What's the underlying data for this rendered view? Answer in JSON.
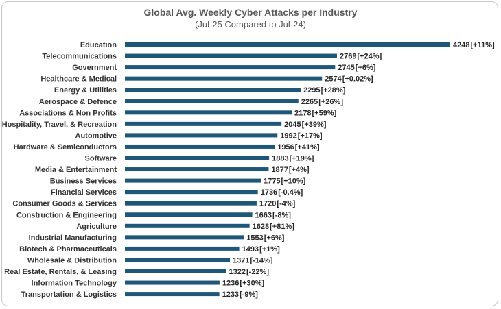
{
  "chart_data": {
    "type": "bar",
    "orientation": "horizontal",
    "title": "Global Avg. Weekly Cyber Attacks per Industry",
    "subtitle": "(Jul-25 Compared to Jul-24)",
    "bar_color": "#1f5779",
    "grid": false,
    "legend": "none",
    "categories": [
      "Education",
      "Telecommunications",
      "Government",
      "Healthcare & Medical",
      "Energy & Utilities",
      "Aerospace & Defence",
      "Associations & Non Profits",
      "Hospitality, Travel, & Recreation",
      "Automotive",
      "Hardware & Semiconductors",
      "Software",
      "Media & Entertainment",
      "Business Services",
      "Financial Services",
      "Consumer Goods & Services",
      "Construction & Engineering",
      "Agriculture",
      "Industrial Manufacturing",
      "Biotech & Pharmaceuticals",
      "Wholesale & Distribution",
      "Real Estate, Rentals, & Leasing",
      "Information Technology",
      "Transportation & Logistics"
    ],
    "values": [
      4248,
      2769,
      2745,
      2574,
      2295,
      2265,
      2178,
      2045,
      1992,
      1956,
      1883,
      1877,
      1775,
      1736,
      1720,
      1663,
      1628,
      1553,
      1493,
      1371,
      1322,
      1236,
      1233
    ],
    "changes": [
      "+11%",
      "+24%",
      "+6%",
      "+0.02%",
      "+28%",
      "+26%",
      "+59%",
      "+39%",
      "+17%",
      "+41%",
      "+19%",
      "+4%",
      "+10%",
      "-0.4%",
      "-4%",
      "-8%",
      "+81%",
      "+6%",
      "+1%",
      "-14%",
      "-22%",
      "+30%",
      "-9%"
    ],
    "xlim": [
      0,
      4248
    ]
  }
}
